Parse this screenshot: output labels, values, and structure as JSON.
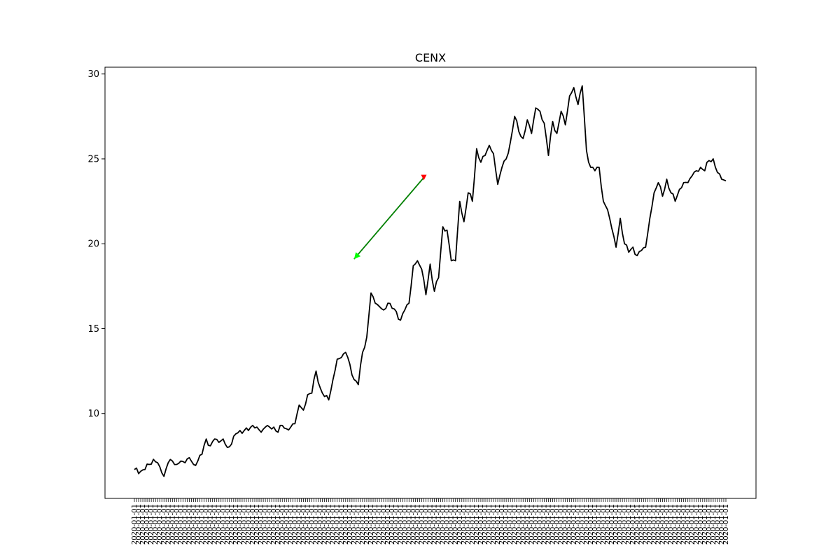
{
  "chart_data": {
    "type": "line",
    "title": "CENX",
    "xlabel": "",
    "ylabel": "",
    "ylim": [
      5.0,
      30.4
    ],
    "y_ticks": [
      10,
      15,
      20,
      25,
      30
    ],
    "grid": false,
    "legend": "none",
    "n_points": 281,
    "x_tick_label_sample": "2020-01-01",
    "colors": {
      "line": "#000000",
      "arrow": "#008000",
      "buy_marker": "#00ff00",
      "sell_marker": "#ff0000"
    },
    "anchors": [
      [
        0,
        6.7
      ],
      [
        3,
        6.6
      ],
      [
        5,
        6.7
      ],
      [
        7,
        7.0
      ],
      [
        9,
        7.3
      ],
      [
        11,
        7.1
      ],
      [
        13,
        6.5
      ],
      [
        14,
        6.3
      ],
      [
        16,
        7.1
      ],
      [
        18,
        7.2
      ],
      [
        20,
        7.0
      ],
      [
        22,
        7.2
      ],
      [
        24,
        7.1
      ],
      [
        26,
        7.4
      ],
      [
        28,
        7.0
      ],
      [
        30,
        7.2
      ],
      [
        32,
        7.6
      ],
      [
        34,
        8.5
      ],
      [
        36,
        8.1
      ],
      [
        38,
        8.5
      ],
      [
        40,
        8.3
      ],
      [
        42,
        8.5
      ],
      [
        44,
        8.0
      ],
      [
        46,
        8.2
      ],
      [
        48,
        8.8
      ],
      [
        50,
        9.0
      ],
      [
        52,
        9.0
      ],
      [
        54,
        9.0
      ],
      [
        56,
        9.3
      ],
      [
        58,
        9.2
      ],
      [
        60,
        8.9
      ],
      [
        62,
        9.2
      ],
      [
        64,
        9.2
      ],
      [
        66,
        9.2
      ],
      [
        68,
        8.9
      ],
      [
        70,
        9.3
      ],
      [
        72,
        9.1
      ],
      [
        74,
        9.2
      ],
      [
        76,
        9.4
      ],
      [
        78,
        10.5
      ],
      [
        80,
        10.2
      ],
      [
        82,
        11.1
      ],
      [
        84,
        11.2
      ],
      [
        86,
        12.5
      ],
      [
        88,
        11.5
      ],
      [
        90,
        11.0
      ],
      [
        92,
        10.8
      ],
      [
        94,
        12.0
      ],
      [
        96,
        13.2
      ],
      [
        98,
        13.3
      ],
      [
        100,
        13.6
      ],
      [
        102,
        12.9
      ],
      [
        104,
        12.0
      ],
      [
        106,
        11.7
      ],
      [
        108,
        13.6
      ],
      [
        110,
        14.5
      ],
      [
        112,
        17.1
      ],
      [
        114,
        16.5
      ],
      [
        116,
        16.3
      ],
      [
        118,
        16.1
      ],
      [
        120,
        16.5
      ],
      [
        122,
        16.2
      ],
      [
        124,
        16.0
      ],
      [
        126,
        15.5
      ],
      [
        128,
        16.1
      ],
      [
        130,
        16.5
      ],
      [
        132,
        18.7
      ],
      [
        134,
        19.0
      ],
      [
        136,
        18.5
      ],
      [
        138,
        17.0
      ],
      [
        140,
        18.8
      ],
      [
        142,
        17.2
      ],
      [
        144,
        18.0
      ],
      [
        146,
        21.0
      ],
      [
        148,
        20.8
      ],
      [
        150,
        19.0
      ],
      [
        152,
        19.0
      ],
      [
        154,
        22.5
      ],
      [
        156,
        21.3
      ],
      [
        158,
        23.0
      ],
      [
        160,
        22.5
      ],
      [
        162,
        25.6
      ],
      [
        164,
        24.8
      ],
      [
        166,
        25.2
      ],
      [
        168,
        25.8
      ],
      [
        170,
        25.3
      ],
      [
        172,
        23.5
      ],
      [
        174,
        24.5
      ],
      [
        176,
        25.0
      ],
      [
        178,
        26.0
      ],
      [
        180,
        27.5
      ],
      [
        182,
        26.6
      ],
      [
        184,
        26.2
      ],
      [
        186,
        27.3
      ],
      [
        188,
        26.5
      ],
      [
        190,
        28.0
      ],
      [
        192,
        27.8
      ],
      [
        194,
        27.1
      ],
      [
        196,
        25.2
      ],
      [
        198,
        27.2
      ],
      [
        200,
        26.5
      ],
      [
        202,
        27.8
      ],
      [
        204,
        27.0
      ],
      [
        206,
        28.7
      ],
      [
        208,
        29.2
      ],
      [
        210,
        28.2
      ],
      [
        212,
        29.3
      ],
      [
        214,
        25.5
      ],
      [
        216,
        24.5
      ],
      [
        218,
        24.3
      ],
      [
        220,
        24.5
      ],
      [
        222,
        22.5
      ],
      [
        224,
        22.0
      ],
      [
        226,
        20.9
      ],
      [
        228,
        19.8
      ],
      [
        230,
        21.5
      ],
      [
        232,
        20.0
      ],
      [
        234,
        19.5
      ],
      [
        236,
        19.8
      ],
      [
        238,
        19.3
      ],
      [
        240,
        19.6
      ],
      [
        242,
        19.8
      ],
      [
        244,
        21.5
      ],
      [
        246,
        23.0
      ],
      [
        248,
        23.6
      ],
      [
        250,
        22.8
      ],
      [
        252,
        23.8
      ],
      [
        254,
        23.0
      ],
      [
        256,
        22.5
      ],
      [
        258,
        23.2
      ],
      [
        260,
        23.6
      ],
      [
        262,
        23.6
      ],
      [
        264,
        24.0
      ],
      [
        266,
        24.3
      ],
      [
        268,
        24.5
      ],
      [
        270,
        24.3
      ],
      [
        272,
        24.9
      ],
      [
        274,
        25.0
      ],
      [
        276,
        24.2
      ],
      [
        278,
        23.8
      ],
      [
        280,
        23.7
      ]
    ],
    "annotations": [
      {
        "type": "arrow",
        "from": {
          "x": 137,
          "y": 23.9
        },
        "to": {
          "x": 104,
          "y": 19.1
        }
      }
    ]
  }
}
